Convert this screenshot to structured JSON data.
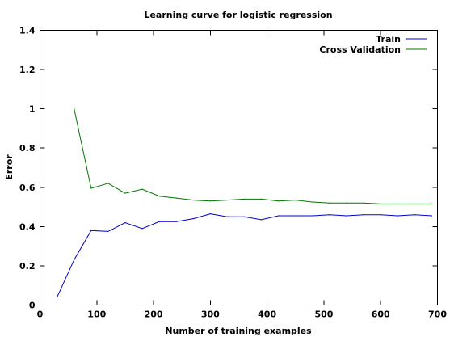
{
  "chart_data": {
    "type": "line",
    "title": "Learning curve for logistic regression",
    "xlabel": "Number of training examples",
    "ylabel": "Error",
    "xlim": [
      0,
      700
    ],
    "ylim": [
      0,
      1.4
    ],
    "xticks": [
      0,
      100,
      200,
      300,
      400,
      500,
      600,
      700
    ],
    "yticks": [
      0,
      0.2,
      0.4,
      0.6,
      0.8,
      1,
      1.2,
      1.4
    ],
    "xtick_labels": [
      "0",
      "100",
      "200",
      "300",
      "400",
      "500",
      "600",
      "700"
    ],
    "ytick_labels": [
      "0",
      "0.2",
      "0.4",
      "0.6",
      "0.8",
      "1",
      "1.2",
      "1.4"
    ],
    "grid": false,
    "legend_position": "top-right",
    "series": [
      {
        "name": "Train",
        "color": "#0000cc",
        "x": [
          30,
          60,
          90,
          120,
          150,
          180,
          210,
          240,
          270,
          300,
          330,
          360,
          390,
          420,
          450,
          480,
          510,
          540,
          570,
          600,
          630,
          660,
          690
        ],
        "y": [
          0.04,
          0.23,
          0.38,
          0.375,
          0.42,
          0.39,
          0.425,
          0.425,
          0.44,
          0.465,
          0.45,
          0.45,
          0.435,
          0.455,
          0.455,
          0.455,
          0.46,
          0.455,
          0.46,
          0.46,
          0.455,
          0.46,
          0.455
        ]
      },
      {
        "name": "Cross Validation",
        "color": "#007700",
        "x": [
          60,
          90,
          120,
          150,
          180,
          210,
          240,
          270,
          300,
          330,
          360,
          390,
          420,
          450,
          480,
          510,
          540,
          570,
          600,
          630,
          660,
          690
        ],
        "y": [
          1.0,
          0.595,
          0.62,
          0.57,
          0.59,
          0.555,
          0.545,
          0.535,
          0.53,
          0.535,
          0.54,
          0.54,
          0.53,
          0.535,
          0.525,
          0.52,
          0.52,
          0.52,
          0.515,
          0.515,
          0.515,
          0.515
        ]
      }
    ]
  }
}
